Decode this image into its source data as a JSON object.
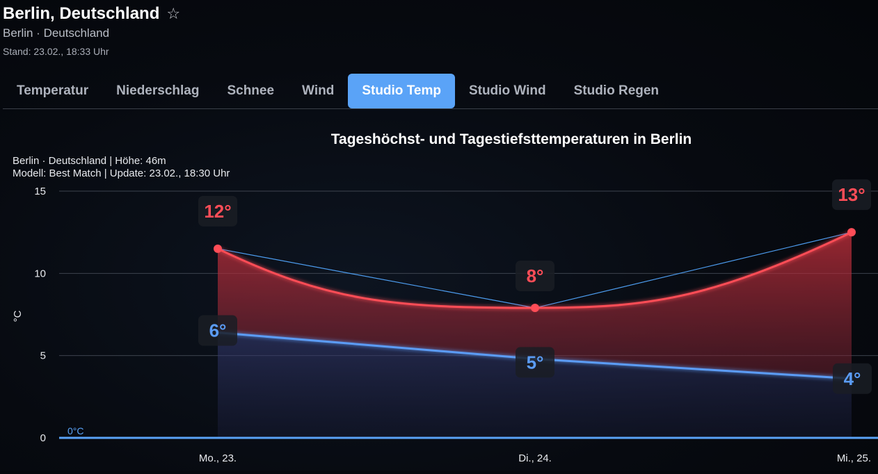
{
  "header": {
    "title": "Berlin, Deutschland",
    "star_icon": "star-outline-icon",
    "subtitle": "Berlin · Deutschland",
    "stand": "Stand: 23.02., 18:33 Uhr"
  },
  "tabs": [
    {
      "label": "Temperatur",
      "active": false
    },
    {
      "label": "Niederschlag",
      "active": false
    },
    {
      "label": "Schnee",
      "active": false
    },
    {
      "label": "Wind",
      "active": false
    },
    {
      "label": "Studio Temp",
      "active": true
    },
    {
      "label": "Studio Wind",
      "active": false
    },
    {
      "label": "Studio Regen",
      "active": false
    }
  ],
  "colors": {
    "accent": "#5aa3f7",
    "high": "#ff4d57",
    "low": "#5b9cf5"
  },
  "chart_data": {
    "type": "line",
    "title": "Tageshöchst- und Tagestiefsttemperaturen in Berlin",
    "info_line1": "Berlin · Deutschland | Höhe: 46m",
    "info_line2": "Modell: Best Match | Update: 23.02., 18:30 Uhr",
    "ylabel": "°C",
    "ylim": [
      0,
      15
    ],
    "yticks": [
      0,
      5,
      10,
      15
    ],
    "zero_line_label": "0°C",
    "categories": [
      "Mo., 23.",
      "Di., 24.",
      "Mi., 25."
    ],
    "series": [
      {
        "key": "high",
        "values": [
          11.5,
          7.9,
          12.5
        ],
        "labels": [
          "12°",
          "8°",
          "13°"
        ]
      },
      {
        "key": "low",
        "values": [
          6.4,
          4.8,
          3.6
        ],
        "labels": [
          "6°",
          "5°",
          "4°"
        ]
      }
    ],
    "grid": true
  }
}
